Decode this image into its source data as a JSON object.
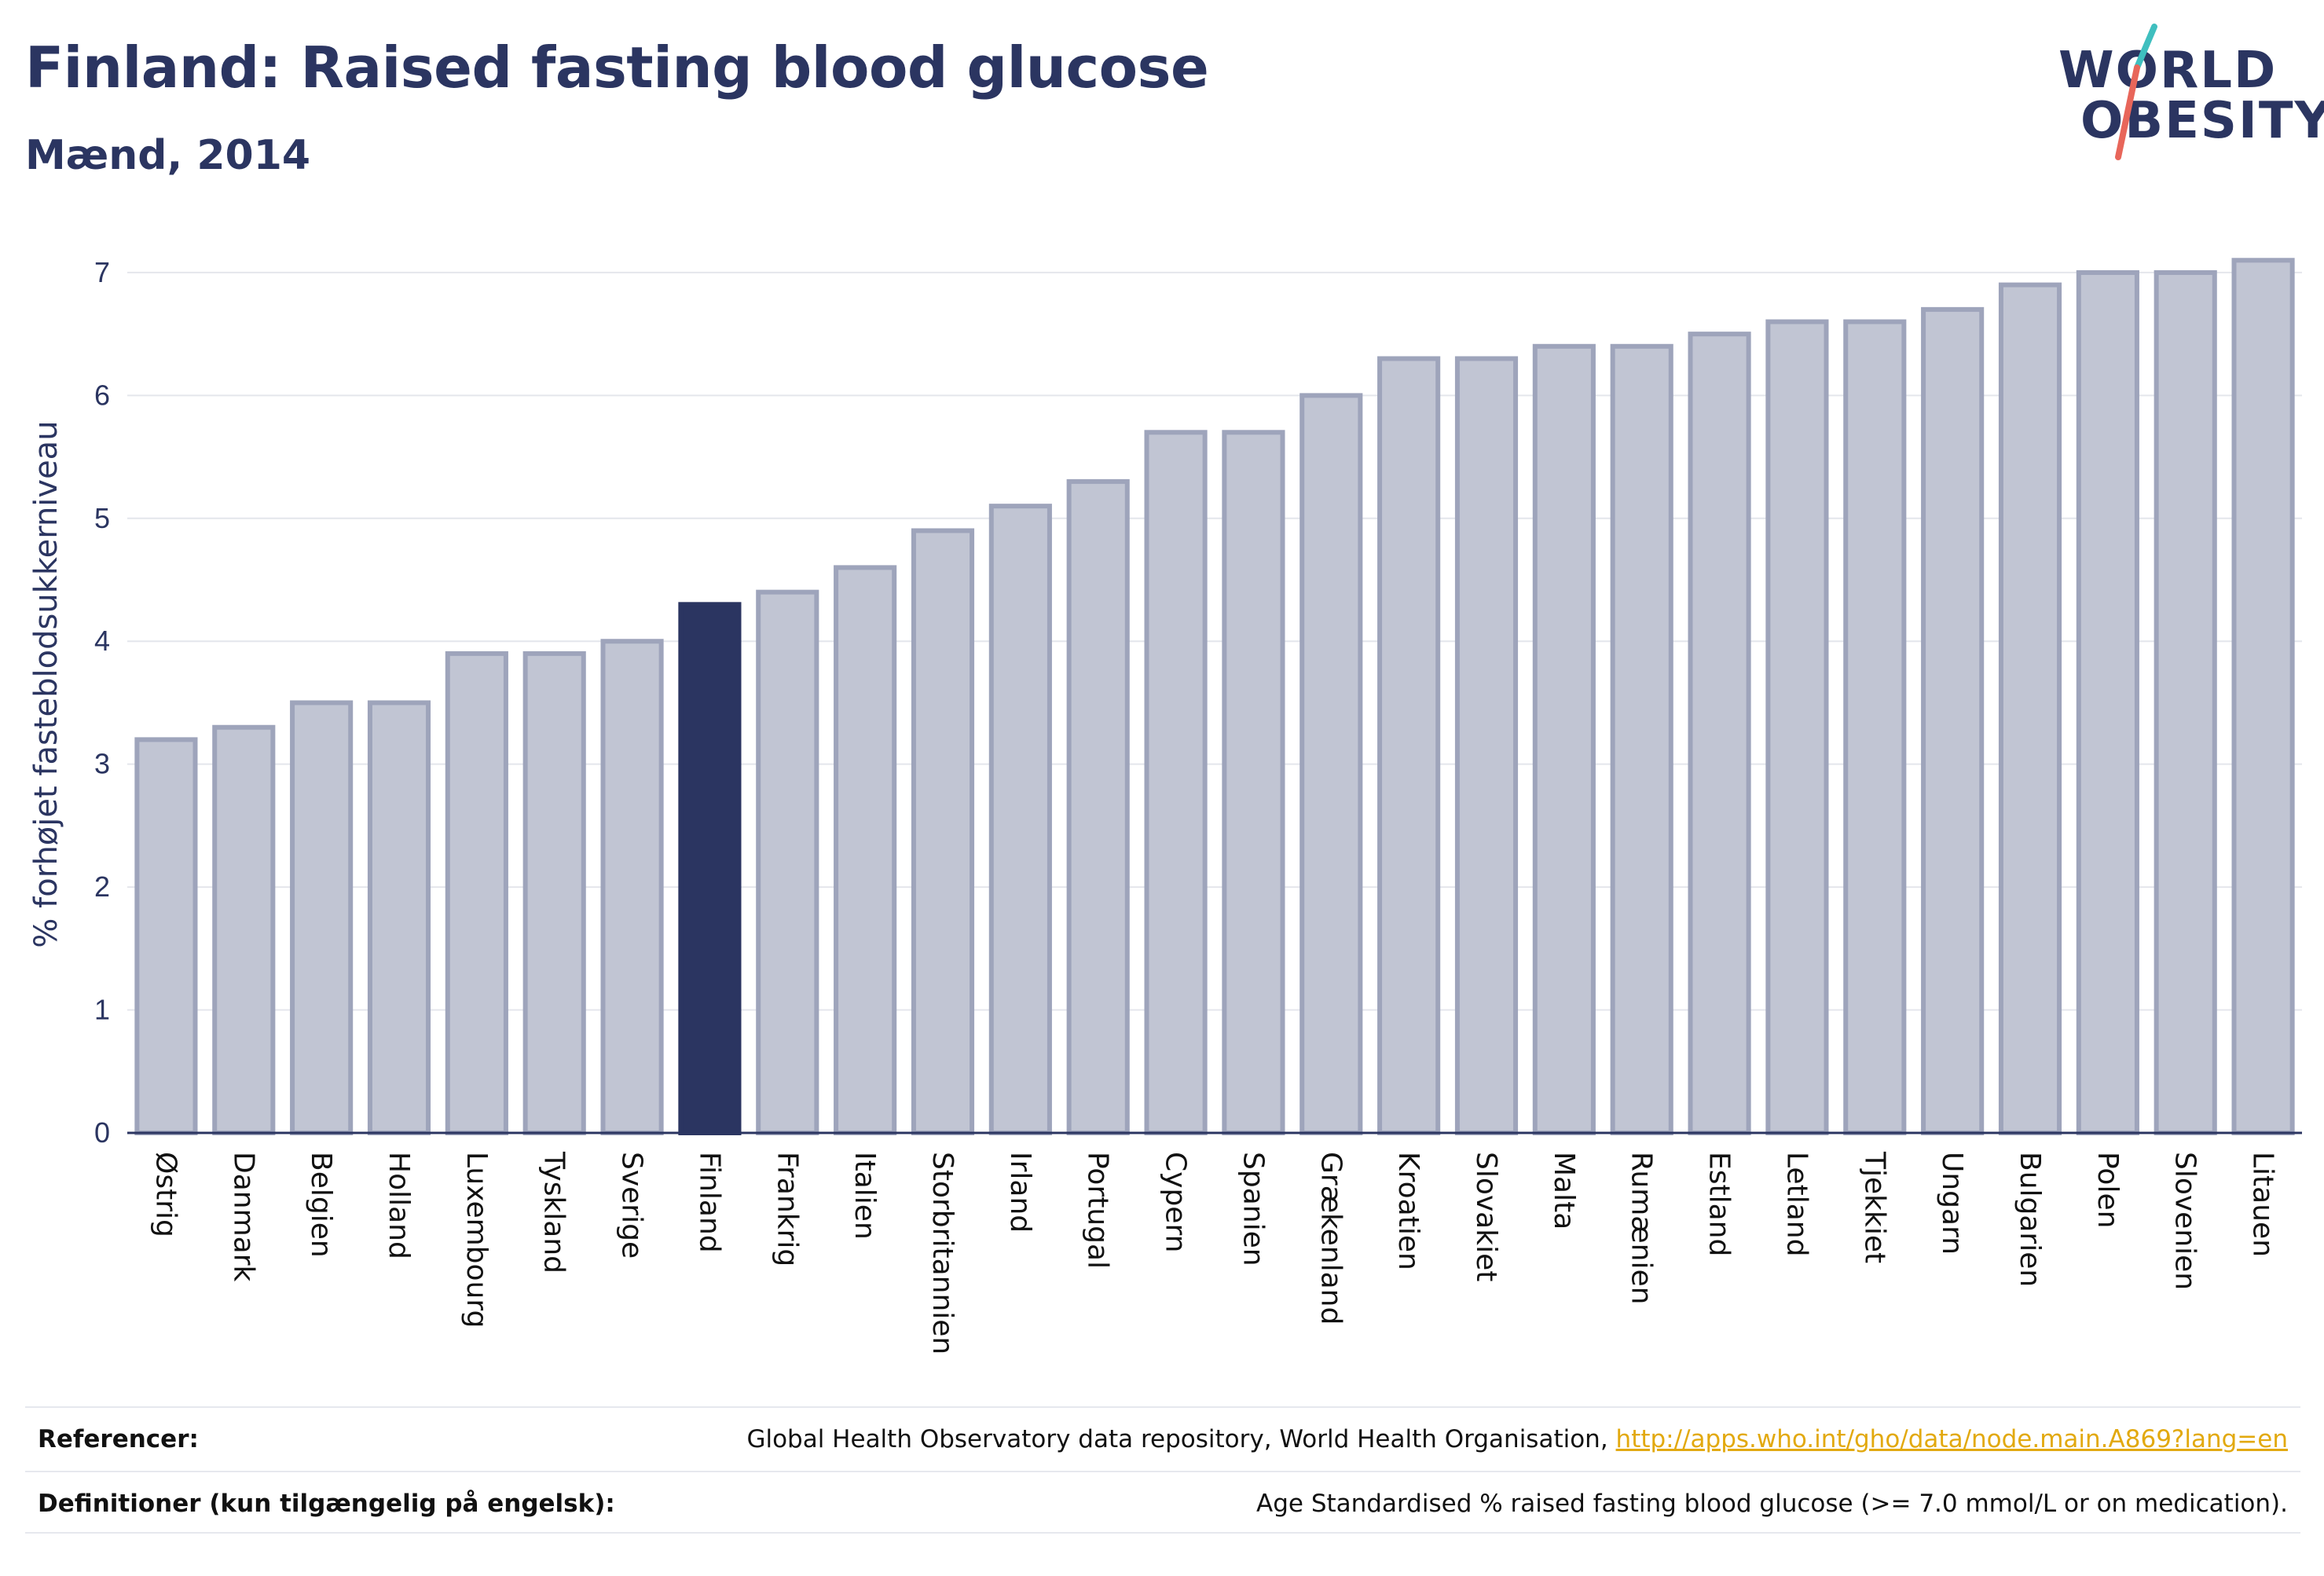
{
  "header": {
    "title": "Finland: Raised fasting blood glucose",
    "subtitle": "Mænd, 2014"
  },
  "logo": {
    "line1": "WORLD",
    "line2": "OBESITY"
  },
  "chart_data": {
    "type": "bar",
    "title": "Finland: Raised fasting blood glucose",
    "subtitle": "Mænd, 2014",
    "xlabel": "",
    "ylabel": "% forhøjet fasteblodsukkerniveau",
    "ylim": [
      0,
      7.3
    ],
    "yticks": [
      0,
      1,
      2,
      3,
      4,
      5,
      6,
      7
    ],
    "grid": true,
    "highlight": "Finland",
    "colors": {
      "bar": "#c1c5d3",
      "bar_border": "#9ea4bb",
      "highlight": "#2b3561",
      "grid": "#e4e6ec",
      "axis": "#2b3561"
    },
    "categories": [
      "Østrig",
      "Danmark",
      "Belgien",
      "Holland",
      "Luxembourg",
      "Tyskland",
      "Sverige",
      "Finland",
      "Frankrig",
      "Italien",
      "Storbritannien",
      "Irland",
      "Portugal",
      "Cypern",
      "Spanien",
      "Grækenland",
      "Kroatien",
      "Slovakiet",
      "Malta",
      "Rumænien",
      "Estland",
      "Letland",
      "Tjekkiet",
      "Ungarn",
      "Bulgarien",
      "Polen",
      "Slovenien",
      "Litauen"
    ],
    "values": [
      3.2,
      3.3,
      3.5,
      3.5,
      3.9,
      3.9,
      4.0,
      4.3,
      4.4,
      4.6,
      4.9,
      5.1,
      5.3,
      5.7,
      5.7,
      6.0,
      6.3,
      6.3,
      6.4,
      6.4,
      6.5,
      6.6,
      6.6,
      6.7,
      6.9,
      7.0,
      7.0,
      7.1
    ]
  },
  "footer": {
    "references_label": "Referencer:",
    "references_text": "Global Health Observatory data repository, World Health Organisation, ",
    "references_link": "http://apps.who.int/gho/data/node.main.A869?lang=en",
    "definitions_label": "Definitioner (kun tilgængelig på engelsk):",
    "definitions_text": "Age Standardised % raised fasting blood glucose (>= 7.0 mmol/L or on medication)."
  }
}
